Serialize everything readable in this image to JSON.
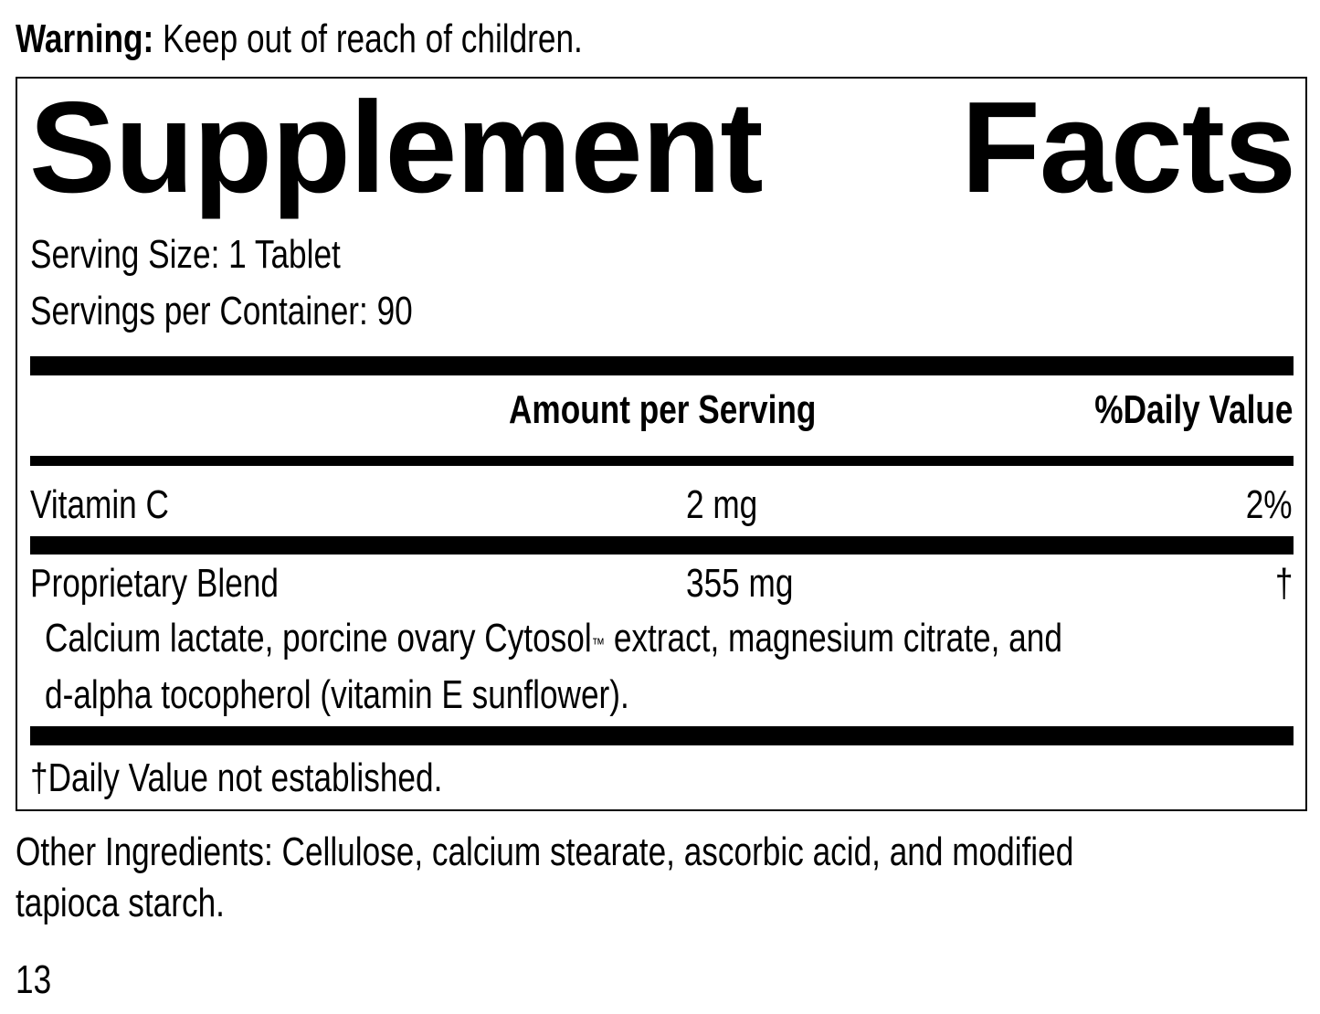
{
  "warning": {
    "label": "Warning:",
    "text": "Keep out of reach of children."
  },
  "panel": {
    "title_word1": "Supplement",
    "title_word2": "Facts",
    "serving_size": "Serving Size: 1 Tablet",
    "servings_per_container": "Servings per Container: 90",
    "header": {
      "amount": "Amount per Serving",
      "daily_value": "%Daily Value"
    },
    "rows": [
      {
        "name": "Vitamin C",
        "amount": "2 mg",
        "dv": "2%"
      },
      {
        "name": "Proprietary Blend",
        "amount": "355 mg",
        "dv": "†"
      }
    ],
    "blend_line1_a": "Calcium lactate, porcine ovary Cytosol",
    "blend_tm": "™",
    "blend_line1_b": " extract, magnesium citrate, and",
    "blend_line2": "d-alpha tocopherol (vitamin E sunflower).",
    "footnote": "†Daily Value not established."
  },
  "other_ingredients": {
    "line1": "Other Ingredients: Cellulose, calcium stearate, ascorbic acid, and modified",
    "line2": "tapioca starch."
  },
  "page_number": "13"
}
